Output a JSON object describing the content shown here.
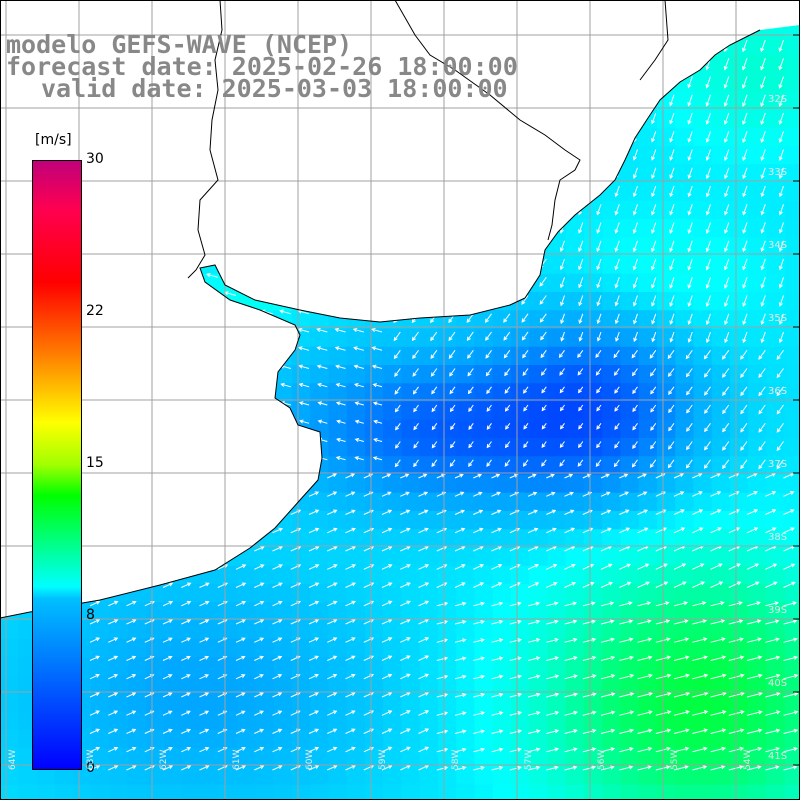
{
  "title": {
    "model": "modelo GEFS-WAVE (NCEP)",
    "forecast": "forecast date: 2025-02-26 18:00:00",
    "valid": "valid date: 2025-03-03 18:00:00"
  },
  "colorbar": {
    "unit": "[m/s]",
    "ticks": [
      "30",
      "22",
      "15",
      "8",
      "0"
    ],
    "min": 0,
    "max": 30
  },
  "lat_labels": [
    "32S",
    "33S",
    "34S",
    "35S",
    "36S",
    "37S",
    "38S",
    "39S",
    "40S",
    "41S"
  ],
  "lon_labels": [
    "64W",
    "63W",
    "62W",
    "61W",
    "60W",
    "59W",
    "58W",
    "57W",
    "56W",
    "55W",
    "54W"
  ],
  "colors": {
    "land": "#ffffff",
    "coast": "#000000",
    "grid": "#a0a0a0",
    "arrow": "#ffffff"
  }
}
